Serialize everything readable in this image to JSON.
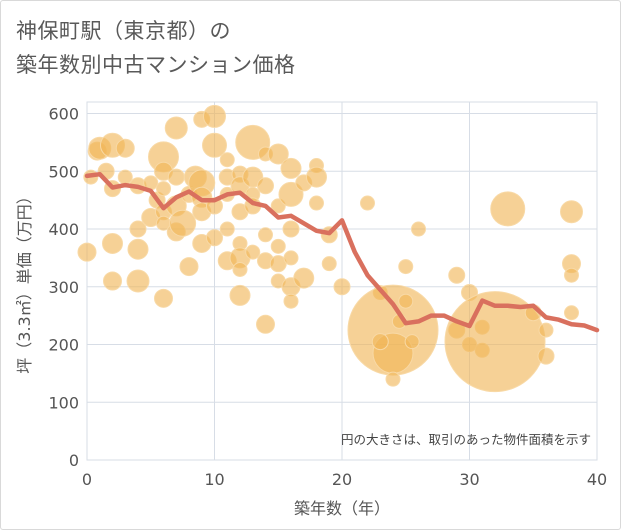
{
  "title": {
    "line1": "神保町駅（東京都）の",
    "line2": "築年数別中古マンション価格"
  },
  "colors": {
    "bubble": "#f0b455",
    "bubble_stroke": "#f8d9a6",
    "line": "#d9705e",
    "grid": "#d7dde6",
    "plot_bg": "#ffffff"
  },
  "chart_data": {
    "type": "scatter",
    "xlabel": "築年数（年）",
    "ylabel": "坪（3.3㎡）単価（万円）",
    "xlim": [
      0,
      40
    ],
    "ylim": [
      0,
      620
    ],
    "xticks": [
      "0",
      "10",
      "20",
      "30",
      "40"
    ],
    "yticks": [
      "0",
      "100",
      "200",
      "300",
      "400",
      "500",
      "600"
    ],
    "grid": true,
    "annotation": "円の大きさは、取引のあった物件面積を示す",
    "bubbles": [
      {
        "x": 0,
        "y": 360,
        "r": 9
      },
      {
        "x": 0.3,
        "y": 490,
        "r": 7
      },
      {
        "x": 0.8,
        "y": 535,
        "r": 9
      },
      {
        "x": 1,
        "y": 540,
        "r": 11
      },
      {
        "x": 1.5,
        "y": 500,
        "r": 8
      },
      {
        "x": 2,
        "y": 545,
        "r": 12
      },
      {
        "x": 2,
        "y": 470,
        "r": 8
      },
      {
        "x": 2,
        "y": 375,
        "r": 10
      },
      {
        "x": 2,
        "y": 310,
        "r": 9
      },
      {
        "x": 3,
        "y": 540,
        "r": 9
      },
      {
        "x": 3,
        "y": 490,
        "r": 7
      },
      {
        "x": 4,
        "y": 475,
        "r": 8
      },
      {
        "x": 4,
        "y": 400,
        "r": 8
      },
      {
        "x": 4,
        "y": 365,
        "r": 10
      },
      {
        "x": 4,
        "y": 310,
        "r": 11
      },
      {
        "x": 5,
        "y": 480,
        "r": 7
      },
      {
        "x": 5,
        "y": 420,
        "r": 9
      },
      {
        "x": 5.5,
        "y": 450,
        "r": 8
      },
      {
        "x": 6,
        "y": 525,
        "r": 15
      },
      {
        "x": 6,
        "y": 500,
        "r": 9
      },
      {
        "x": 6,
        "y": 470,
        "r": 7
      },
      {
        "x": 6,
        "y": 430,
        "r": 8
      },
      {
        "x": 6,
        "y": 410,
        "r": 7
      },
      {
        "x": 6,
        "y": 280,
        "r": 9
      },
      {
        "x": 7,
        "y": 575,
        "r": 11
      },
      {
        "x": 7,
        "y": 490,
        "r": 8
      },
      {
        "x": 7,
        "y": 440,
        "r": 10
      },
      {
        "x": 7,
        "y": 395,
        "r": 9
      },
      {
        "x": 7.5,
        "y": 410,
        "r": 13
      },
      {
        "x": 8,
        "y": 460,
        "r": 8
      },
      {
        "x": 8,
        "y": 335,
        "r": 9
      },
      {
        "x": 8.5,
        "y": 490,
        "r": 11
      },
      {
        "x": 9,
        "y": 590,
        "r": 8
      },
      {
        "x": 9,
        "y": 480,
        "r": 13
      },
      {
        "x": 9,
        "y": 455,
        "r": 10
      },
      {
        "x": 9,
        "y": 430,
        "r": 9
      },
      {
        "x": 9,
        "y": 375,
        "r": 9
      },
      {
        "x": 10,
        "y": 595,
        "r": 11
      },
      {
        "x": 10,
        "y": 545,
        "r": 12
      },
      {
        "x": 10,
        "y": 440,
        "r": 8
      },
      {
        "x": 10,
        "y": 385,
        "r": 8
      },
      {
        "x": 11,
        "y": 520,
        "r": 7
      },
      {
        "x": 11,
        "y": 490,
        "r": 8
      },
      {
        "x": 11,
        "y": 460,
        "r": 7
      },
      {
        "x": 11,
        "y": 400,
        "r": 7
      },
      {
        "x": 11,
        "y": 345,
        "r": 9
      },
      {
        "x": 12,
        "y": 495,
        "r": 8
      },
      {
        "x": 12,
        "y": 475,
        "r": 9
      },
      {
        "x": 12,
        "y": 430,
        "r": 8
      },
      {
        "x": 12,
        "y": 375,
        "r": 7
      },
      {
        "x": 12,
        "y": 350,
        "r": 10
      },
      {
        "x": 12,
        "y": 330,
        "r": 7
      },
      {
        "x": 12,
        "y": 285,
        "r": 10
      },
      {
        "x": 13,
        "y": 550,
        "r": 17
      },
      {
        "x": 13,
        "y": 490,
        "r": 10
      },
      {
        "x": 13,
        "y": 460,
        "r": 7
      },
      {
        "x": 13,
        "y": 440,
        "r": 8
      },
      {
        "x": 13,
        "y": 360,
        "r": 7
      },
      {
        "x": 14,
        "y": 530,
        "r": 7
      },
      {
        "x": 14,
        "y": 475,
        "r": 8
      },
      {
        "x": 14,
        "y": 390,
        "r": 7
      },
      {
        "x": 14,
        "y": 345,
        "r": 8
      },
      {
        "x": 14,
        "y": 235,
        "r": 9
      },
      {
        "x": 15,
        "y": 530,
        "r": 10
      },
      {
        "x": 15,
        "y": 440,
        "r": 7
      },
      {
        "x": 15,
        "y": 370,
        "r": 7
      },
      {
        "x": 15,
        "y": 340,
        "r": 8
      },
      {
        "x": 15,
        "y": 310,
        "r": 7
      },
      {
        "x": 16,
        "y": 505,
        "r": 10
      },
      {
        "x": 16,
        "y": 460,
        "r": 12
      },
      {
        "x": 16,
        "y": 400,
        "r": 8
      },
      {
        "x": 16,
        "y": 350,
        "r": 7
      },
      {
        "x": 16,
        "y": 300,
        "r": 9
      },
      {
        "x": 16,
        "y": 275,
        "r": 7
      },
      {
        "x": 17,
        "y": 480,
        "r": 8
      },
      {
        "x": 17,
        "y": 315,
        "r": 10
      },
      {
        "x": 18,
        "y": 510,
        "r": 7
      },
      {
        "x": 18,
        "y": 490,
        "r": 10
      },
      {
        "x": 18,
        "y": 445,
        "r": 7
      },
      {
        "x": 19,
        "y": 390,
        "r": 8
      },
      {
        "x": 19,
        "y": 340,
        "r": 7
      },
      {
        "x": 20,
        "y": 300,
        "r": 8
      },
      {
        "x": 22,
        "y": 445,
        "r": 7
      },
      {
        "x": 23,
        "y": 290,
        "r": 7
      },
      {
        "x": 24,
        "y": 225,
        "r": 45
      },
      {
        "x": 24,
        "y": 185,
        "r": 20
      },
      {
        "x": 23,
        "y": 205,
        "r": 8
      },
      {
        "x": 24,
        "y": 140,
        "r": 7
      },
      {
        "x": 24.5,
        "y": 240,
        "r": 7
      },
      {
        "x": 25,
        "y": 335,
        "r": 7
      },
      {
        "x": 25,
        "y": 275,
        "r": 7
      },
      {
        "x": 25.5,
        "y": 205,
        "r": 7
      },
      {
        "x": 26,
        "y": 400,
        "r": 7
      },
      {
        "x": 29,
        "y": 225,
        "r": 8
      },
      {
        "x": 29,
        "y": 320,
        "r": 8
      },
      {
        "x": 30,
        "y": 290,
        "r": 8
      },
      {
        "x": 30,
        "y": 200,
        "r": 7
      },
      {
        "x": 31,
        "y": 230,
        "r": 7
      },
      {
        "x": 31,
        "y": 190,
        "r": 7
      },
      {
        "x": 32,
        "y": 205,
        "r": 50
      },
      {
        "x": 33,
        "y": 435,
        "r": 17
      },
      {
        "x": 35,
        "y": 255,
        "r": 8
      },
      {
        "x": 36,
        "y": 225,
        "r": 7
      },
      {
        "x": 36,
        "y": 180,
        "r": 8
      },
      {
        "x": 38,
        "y": 430,
        "r": 11
      },
      {
        "x": 38,
        "y": 340,
        "r": 9
      },
      {
        "x": 38,
        "y": 320,
        "r": 7
      },
      {
        "x": 38,
        "y": 255,
        "r": 7
      }
    ],
    "line": [
      {
        "x": 0,
        "y": 492
      },
      {
        "x": 1,
        "y": 495
      },
      {
        "x": 2,
        "y": 472
      },
      {
        "x": 3,
        "y": 476
      },
      {
        "x": 4,
        "y": 473
      },
      {
        "x": 5,
        "y": 466
      },
      {
        "x": 6,
        "y": 436
      },
      {
        "x": 7,
        "y": 455
      },
      {
        "x": 8,
        "y": 465
      },
      {
        "x": 9,
        "y": 450
      },
      {
        "x": 10,
        "y": 450
      },
      {
        "x": 11,
        "y": 460
      },
      {
        "x": 12,
        "y": 463
      },
      {
        "x": 13,
        "y": 445
      },
      {
        "x": 14,
        "y": 440
      },
      {
        "x": 15,
        "y": 420
      },
      {
        "x": 16,
        "y": 423
      },
      {
        "x": 17,
        "y": 410
      },
      {
        "x": 18,
        "y": 397
      },
      {
        "x": 19,
        "y": 393
      },
      {
        "x": 20,
        "y": 415
      },
      {
        "x": 21,
        "y": 360
      },
      {
        "x": 22,
        "y": 320
      },
      {
        "x": 23,
        "y": 295
      },
      {
        "x": 24,
        "y": 270
      },
      {
        "x": 25,
        "y": 237
      },
      {
        "x": 26,
        "y": 240
      },
      {
        "x": 27,
        "y": 250
      },
      {
        "x": 28,
        "y": 250
      },
      {
        "x": 29,
        "y": 240
      },
      {
        "x": 30,
        "y": 232
      },
      {
        "x": 31,
        "y": 276
      },
      {
        "x": 32,
        "y": 267
      },
      {
        "x": 33,
        "y": 267
      },
      {
        "x": 34,
        "y": 265
      },
      {
        "x": 35,
        "y": 267
      },
      {
        "x": 36,
        "y": 247
      },
      {
        "x": 37,
        "y": 243
      },
      {
        "x": 38,
        "y": 235
      },
      {
        "x": 39,
        "y": 233
      },
      {
        "x": 40,
        "y": 225
      }
    ]
  }
}
